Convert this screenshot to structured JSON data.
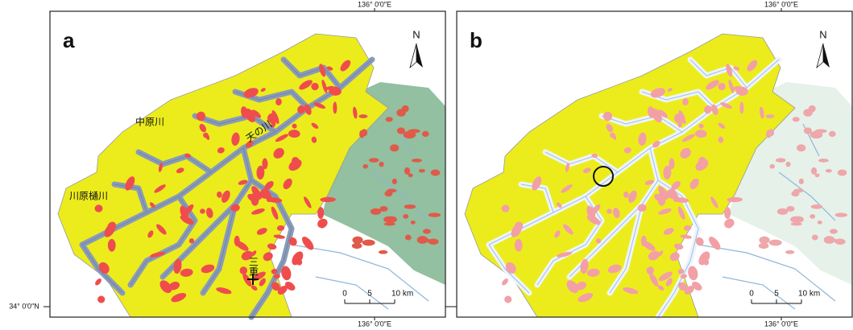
{
  "left_coord": "34° 0′0″N",
  "panels": [
    {
      "label": "a",
      "north": "N",
      "top_coord": "136° 0′0″E",
      "bottom_coord": "136° 0′0″E",
      "scale": [
        "0",
        "5",
        "10 km"
      ],
      "place_names": [
        "中原川",
        "天の川",
        "川原樋川",
        "三重"
      ]
    },
    {
      "label": "b",
      "north": "N",
      "top_coord": "136° 0′0″E",
      "bottom_coord": "136° 0′0″E",
      "scale": [
        "0",
        "5",
        "10 km"
      ]
    }
  ]
}
